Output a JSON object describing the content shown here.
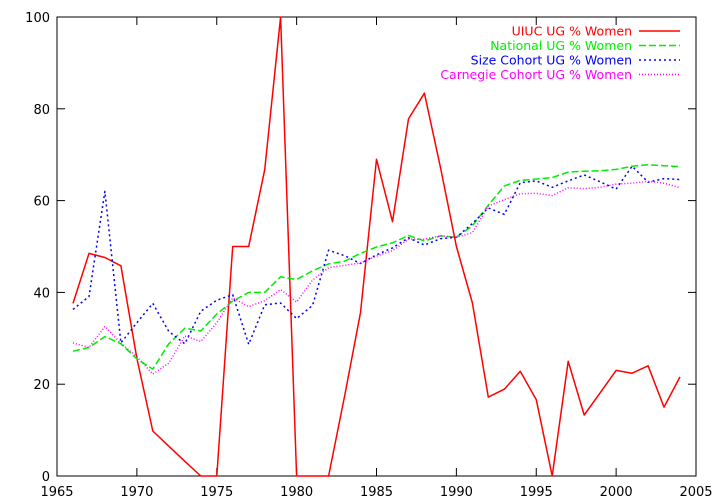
{
  "chart_data": {
    "type": "line",
    "title": "",
    "xlabel": "",
    "ylabel": "",
    "xlim": [
      1965,
      2005
    ],
    "ylim": [
      0,
      100
    ],
    "xticks": [
      1965,
      1970,
      1975,
      1980,
      1985,
      1990,
      1995,
      2000,
      2005
    ],
    "yticks": [
      0,
      20,
      40,
      60,
      80,
      100
    ],
    "grid": false,
    "legend_position": "top-right",
    "series": [
      {
        "name": "UIUC UG % Women",
        "color": "#ff0000",
        "dash": "solid",
        "x": [
          1966,
          1967,
          1968,
          1969,
          1970,
          1971,
          1972,
          1973,
          1974,
          1975,
          1976,
          1977,
          1978,
          1979,
          1980,
          1981,
          1982,
          1983,
          1984,
          1985,
          1986,
          1987,
          1988,
          1989,
          1990,
          1991,
          1992,
          1993,
          1994,
          1995,
          1996,
          1997,
          1998,
          1999,
          2000,
          2001,
          2002,
          2003,
          2004
        ],
        "y": [
          37.6,
          48.5,
          47.6,
          45.8,
          25.6,
          9.8,
          6.5,
          3.2,
          0,
          0,
          50,
          50,
          66.7,
          100,
          0,
          0,
          0,
          17.4,
          35.6,
          69.0,
          55.4,
          77.8,
          83.4,
          67.3,
          50.0,
          37.7,
          17.2,
          18.9,
          22.8,
          16.6,
          0,
          25.0,
          13.3,
          18.1,
          23.0,
          22.4,
          24.0,
          15.0,
          21.6
        ]
      },
      {
        "name": "National UG % Women",
        "color": "#00ee00",
        "dash": "long",
        "x": [
          1966,
          1967,
          1968,
          1969,
          1970,
          1971,
          1972,
          1973,
          1974,
          1975,
          1976,
          1977,
          1978,
          1979,
          1980,
          1981,
          1982,
          1983,
          1984,
          1985,
          1986,
          1987,
          1988,
          1989,
          1990,
          1991,
          1992,
          1993,
          1994,
          1995,
          1996,
          1997,
          1998,
          1999,
          2000,
          2001,
          2002,
          2003,
          2004
        ],
        "y": [
          27.2,
          28.0,
          30.4,
          28.8,
          25.5,
          23.3,
          28.8,
          32.2,
          31.6,
          35.3,
          38.1,
          40.0,
          40.0,
          43.4,
          42.8,
          44.7,
          46.2,
          46.8,
          48.5,
          49.9,
          50.8,
          52.4,
          51.2,
          52.3,
          52.0,
          54.5,
          59.0,
          63.2,
          64.4,
          64.7,
          65.0,
          66.2,
          66.4,
          66.5,
          66.8,
          67.5,
          67.8,
          67.6,
          67.4
        ]
      },
      {
        "name": "Size Cohort UG % Women",
        "color": "#0000ee",
        "dash": "dotted",
        "x": [
          1966,
          1967,
          1968,
          1969,
          1970,
          1971,
          1972,
          1973,
          1974,
          1975,
          1976,
          1977,
          1978,
          1979,
          1980,
          1981,
          1982,
          1983,
          1984,
          1985,
          1986,
          1987,
          1988,
          1989,
          1990,
          1991,
          1992,
          1993,
          1994,
          1995,
          1996,
          1997,
          1998,
          1999,
          2000,
          2001,
          2002,
          2003,
          2004
        ],
        "y": [
          36.3,
          39.1,
          62.0,
          29.0,
          33.4,
          37.6,
          31.5,
          28.8,
          35.9,
          38.3,
          39.5,
          28.7,
          37.3,
          37.7,
          34.3,
          37.2,
          49.2,
          48.0,
          46.3,
          48.2,
          49.7,
          51.9,
          50.3,
          51.7,
          52.0,
          55.0,
          58.4,
          57.0,
          63.9,
          64.3,
          62.9,
          64.3,
          65.6,
          64.1,
          62.5,
          67.5,
          64.0,
          64.8,
          64.6
        ]
      },
      {
        "name": "Carnegie Cohort UG % Women",
        "color": "#ff00ff",
        "dash": "fine",
        "x": [
          1966,
          1967,
          1968,
          1969,
          1970,
          1971,
          1972,
          1973,
          1974,
          1975,
          1976,
          1977,
          1978,
          1979,
          1980,
          1981,
          1982,
          1983,
          1984,
          1985,
          1986,
          1987,
          1988,
          1989,
          1990,
          1991,
          1992,
          1993,
          1994,
          1995,
          1996,
          1997,
          1998,
          1999,
          2000,
          2001,
          2002,
          2003,
          2004
        ],
        "y": [
          29.0,
          28.0,
          32.6,
          28.9,
          26.0,
          22.2,
          24.6,
          30.5,
          29.3,
          33.4,
          38.8,
          36.9,
          38.2,
          40.6,
          37.9,
          42.7,
          45.4,
          45.9,
          46.4,
          47.9,
          49.1,
          51.6,
          51.6,
          52.3,
          52.0,
          53.0,
          58.8,
          60.2,
          61.5,
          61.6,
          61.1,
          62.8,
          62.6,
          62.9,
          63.6,
          63.8,
          64.2,
          63.8,
          62.8
        ]
      }
    ]
  }
}
